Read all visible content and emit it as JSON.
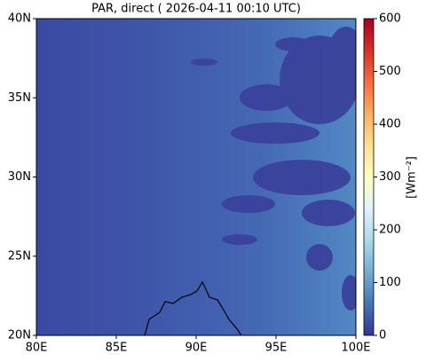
{
  "chart_data": {
    "type": "map",
    "title": "PAR, direct ( 2026-04-11 00:10 UTC)",
    "xlim": [
      80,
      100
    ],
    "ylim": [
      20,
      40
    ],
    "xticks": [
      {
        "value": 80,
        "label": "80E"
      },
      {
        "value": 85,
        "label": "85E"
      },
      {
        "value": 90,
        "label": "90E"
      },
      {
        "value": 95,
        "label": "95E"
      },
      {
        "value": 100,
        "label": "100E"
      }
    ],
    "yticks": [
      {
        "value": 20,
        "label": "20N"
      },
      {
        "value": 25,
        "label": "25N"
      },
      {
        "value": 30,
        "label": "30N"
      },
      {
        "value": 35,
        "label": "35N"
      },
      {
        "value": 40,
        "label": "40N"
      }
    ],
    "colorbar": {
      "label": "[Wm⁻²]",
      "lim": [
        0,
        600
      ],
      "ticks": [
        0,
        100,
        200,
        300,
        400,
        500,
        600
      ],
      "colors": [
        "#313695",
        "#4575b4",
        "#74add1",
        "#abd9e9",
        "#e0f3f8",
        "#ffffbf",
        "#fee090",
        "#fdae61",
        "#f46d43",
        "#d73027",
        "#a50026"
      ]
    }
  }
}
